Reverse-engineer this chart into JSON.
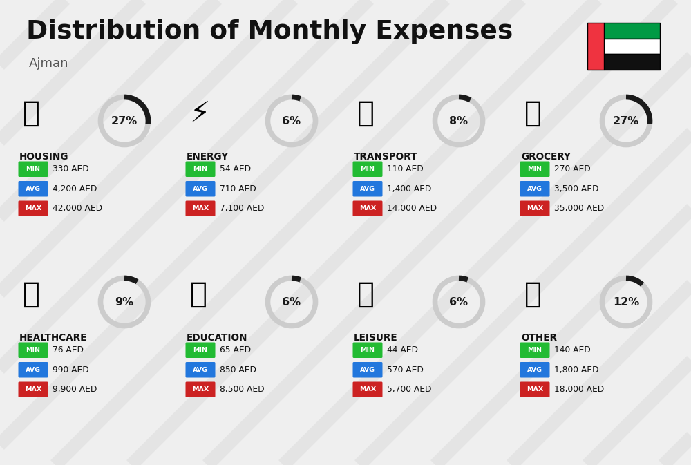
{
  "title": "Distribution of Monthly Expenses",
  "subtitle": "Ajman",
  "bg_color": "#efefef",
  "categories": [
    {
      "name": "HOUSING",
      "pct": 27,
      "min": "330 AED",
      "avg": "4,200 AED",
      "max": "42,000 AED",
      "icon_key": "housing",
      "row": 0,
      "col": 0
    },
    {
      "name": "ENERGY",
      "pct": 6,
      "min": "54 AED",
      "avg": "710 AED",
      "max": "7,100 AED",
      "icon_key": "energy",
      "row": 0,
      "col": 1
    },
    {
      "name": "TRANSPORT",
      "pct": 8,
      "min": "110 AED",
      "avg": "1,400 AED",
      "max": "14,000 AED",
      "icon_key": "transport",
      "row": 0,
      "col": 2
    },
    {
      "name": "GROCERY",
      "pct": 27,
      "min": "270 AED",
      "avg": "3,500 AED",
      "max": "35,000 AED",
      "icon_key": "grocery",
      "row": 0,
      "col": 3
    },
    {
      "name": "HEALTHCARE",
      "pct": 9,
      "min": "76 AED",
      "avg": "990 AED",
      "max": "9,900 AED",
      "icon_key": "healthcare",
      "row": 1,
      "col": 0
    },
    {
      "name": "EDUCATION",
      "pct": 6,
      "min": "65 AED",
      "avg": "850 AED",
      "max": "8,500 AED",
      "icon_key": "education",
      "row": 1,
      "col": 1
    },
    {
      "name": "LEISURE",
      "pct": 6,
      "min": "44 AED",
      "avg": "570 AED",
      "max": "5,700 AED",
      "icon_key": "leisure",
      "row": 1,
      "col": 2
    },
    {
      "name": "OTHER",
      "pct": 12,
      "min": "140 AED",
      "avg": "1,800 AED",
      "max": "18,000 AED",
      "icon_key": "other",
      "row": 1,
      "col": 3
    }
  ],
  "min_color": "#22bb33",
  "avg_color": "#2277dd",
  "max_color": "#cc2222",
  "arc_color_filled": "#1a1a1a",
  "arc_color_empty": "#cccccc",
  "pct_color": "#1a1a1a",
  "name_color": "#111111"
}
